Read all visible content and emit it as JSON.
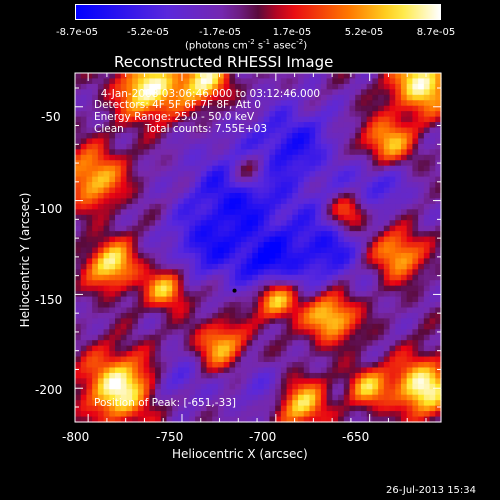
{
  "colorbar": {
    "ticks": [
      "-8.7e-05",
      "-5.2e-05",
      "-1.7e-05",
      "1.7e-05",
      "5.2e-05",
      "8.7e-05"
    ],
    "units_label": "(photons cm",
    "units_exp1": "-2",
    "units_mid": " s",
    "units_exp2": "-1",
    "units_mid2": " asec",
    "units_exp3": "-2",
    "units_close": ")"
  },
  "chart_data": {
    "type": "heatmap",
    "title": "Reconstructed RHESSI Image",
    "xlabel": "Heliocentric X (arcsec)",
    "ylabel": "Heliocentric Y (arcsec)",
    "xlim": [
      -807,
      -612
    ],
    "ylim": [
      -218,
      -32
    ],
    "x_ticks": [
      -800,
      -750,
      -700,
      -650
    ],
    "y_ticks": [
      -50,
      -100,
      -150,
      -200
    ],
    "color_range": [
      -8.7e-05,
      8.7e-05
    ],
    "annotations": {
      "time": "4-Jan-2008 03:06:46.000 to 03:12:46.000",
      "detectors": "Detectors: 4F 5F 6F 7F 8F, Att 0",
      "energy": "Energy Range: 25.0 - 50.0 keV",
      "clean": "Clean",
      "counts": "Total counts: 7.55E+03",
      "position": "Position of Peak: [-651,-33]"
    },
    "marker": {
      "x": -722,
      "y": -148
    }
  },
  "timestamp": "26-Jul-2013 15:34"
}
